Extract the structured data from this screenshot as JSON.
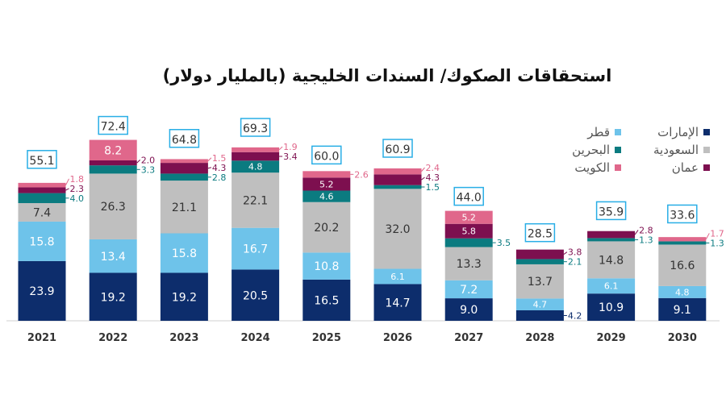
{
  "chart_data": {
    "type": "bar",
    "stacked": true,
    "title": "استحقاقات الصكوك/ السندات الخليجية (بالمليار دولار)",
    "categories": [
      "2021",
      "2022",
      "2023",
      "2024",
      "2025",
      "2026",
      "2027",
      "2028",
      "2029",
      "2030"
    ],
    "series": [
      {
        "name": "الإمارات",
        "color": "#0d2d6c",
        "values": [
          23.9,
          19.2,
          19.2,
          20.5,
          16.5,
          14.7,
          9.0,
          4.2,
          10.9,
          9.1
        ]
      },
      {
        "name": "قطر",
        "color": "#6ec3ea",
        "values": [
          15.8,
          13.4,
          15.8,
          16.7,
          10.8,
          6.1,
          7.2,
          4.7,
          6.1,
          4.8
        ]
      },
      {
        "name": "السعودية",
        "color": "#bfbfbf",
        "values": [
          7.4,
          26.3,
          21.1,
          22.1,
          20.2,
          32.0,
          13.3,
          13.7,
          14.8,
          16.6
        ]
      },
      {
        "name": "البحرين",
        "color": "#0b7b80",
        "values": [
          4.0,
          3.3,
          2.8,
          4.8,
          4.6,
          1.5,
          3.5,
          2.1,
          1.3,
          1.3
        ]
      },
      {
        "name": "عمان",
        "color": "#7d0f4f",
        "values": [
          2.3,
          2.0,
          4.3,
          3.4,
          5.2,
          4.3,
          5.8,
          3.8,
          2.8,
          null
        ]
      },
      {
        "name": "الكويت",
        "color": "#e0678b",
        "values": [
          1.8,
          8.2,
          1.5,
          1.9,
          2.6,
          2.4,
          5.2,
          null,
          null,
          1.7
        ]
      }
    ],
    "totals": [
      "55.1",
      "72.4",
      "64.8",
      "69.3",
      "60.0",
      "60.9",
      "44.0",
      "28.5",
      "35.9",
      "33.6"
    ],
    "legend_position": "top-right",
    "grid": false
  }
}
